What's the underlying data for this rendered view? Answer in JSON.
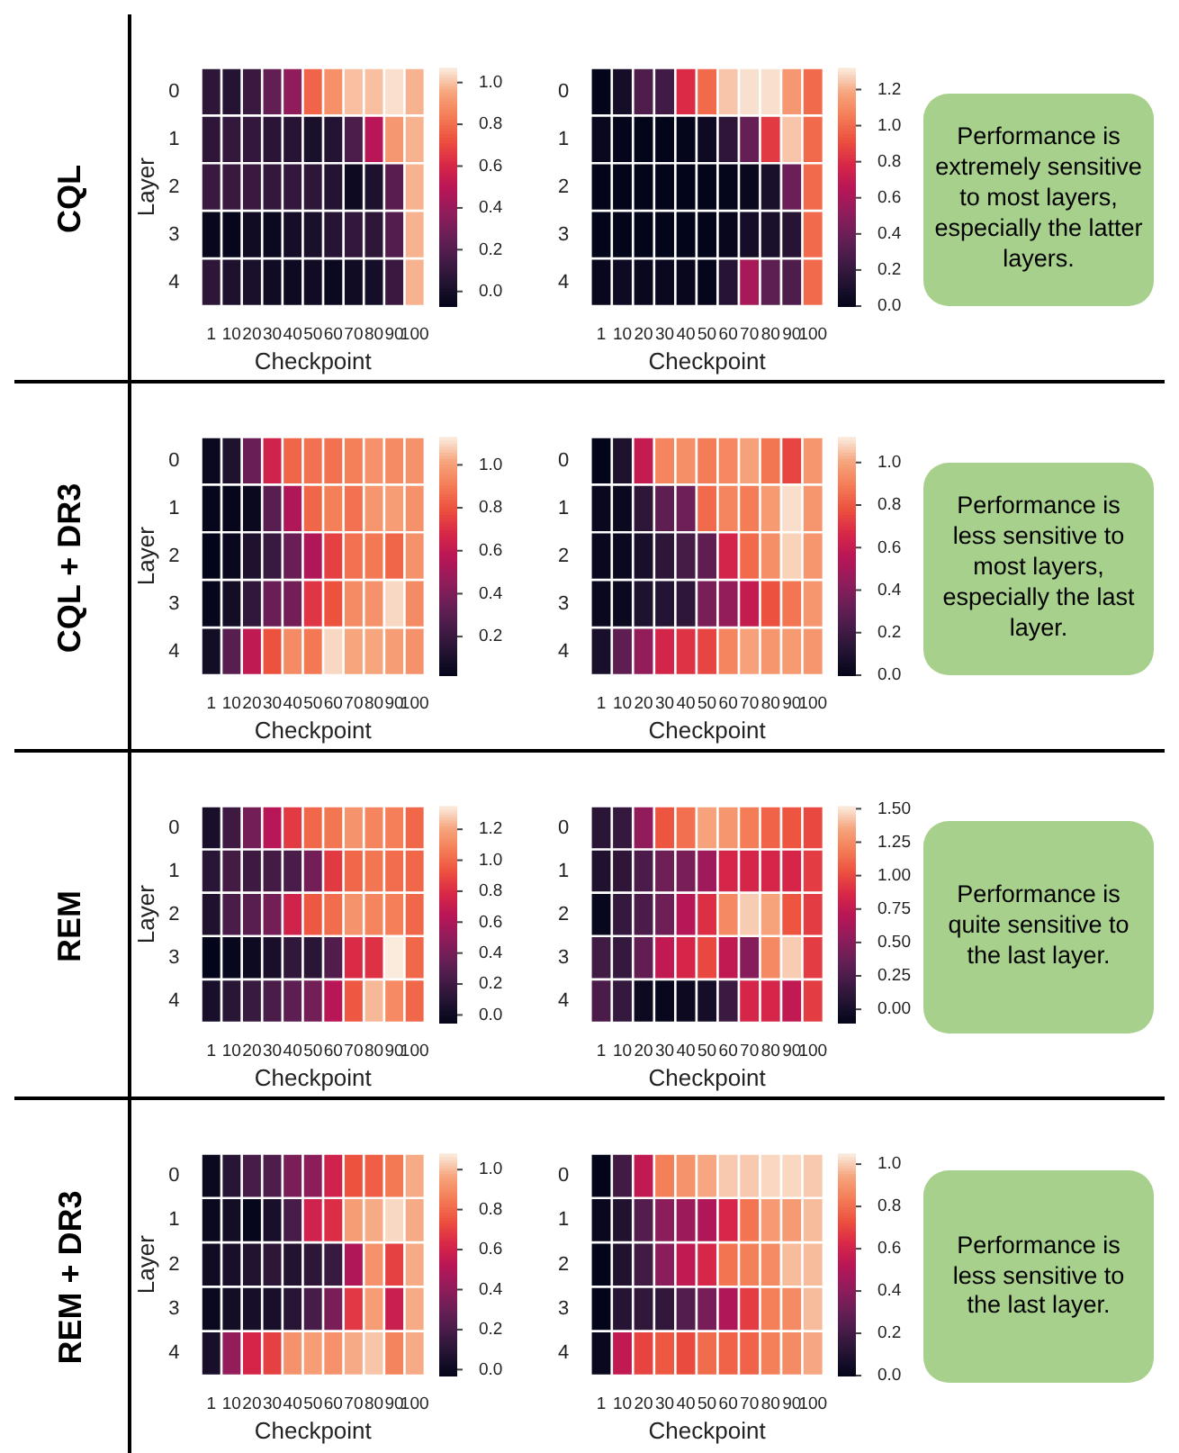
{
  "chart_data": [
    {
      "type": "heatmap",
      "xlabel": "Checkpoint",
      "ylabel": "Layer",
      "categories": [
        "1",
        "10",
        "20",
        "30",
        "40",
        "50",
        "60",
        "70",
        "80",
        "90",
        "100"
      ],
      "y_categories": [
        "0",
        "1",
        "2",
        "3",
        "4"
      ],
      "clim": [
        -0.07,
        1.07
      ],
      "cticks": [
        {
          "value": 0,
          "label": "0.0"
        },
        {
          "value": 0.2,
          "label": "0.2"
        },
        {
          "value": 0.4,
          "label": "0.4"
        },
        {
          "value": 0.6,
          "label": "0.6"
        },
        {
          "value": 0.8,
          "label": "0.8"
        },
        {
          "value": 1,
          "label": "1.0"
        }
      ],
      "cells": [
        [
          0.08,
          0.05,
          0.12,
          0.25,
          0.38,
          0.78,
          0.9,
          1.0,
          1.0,
          1.05,
          0.98
        ],
        [
          0.08,
          0.1,
          0.1,
          0.07,
          0.06,
          0.02,
          0.05,
          0.18,
          0.5,
          0.92,
          0.98
        ],
        [
          0.12,
          0.12,
          0.12,
          0.1,
          0.1,
          0.08,
          0.05,
          -0.03,
          0.03,
          0.22,
          0.98
        ],
        [
          -0.05,
          -0.06,
          -0.02,
          -0.04,
          0.0,
          0.02,
          0.06,
          0.1,
          0.08,
          0.2,
          0.98
        ],
        [
          0.08,
          0.03,
          0.02,
          -0.02,
          -0.03,
          -0.02,
          -0.04,
          -0.02,
          0.0,
          0.12,
          0.98
        ]
      ]
    },
    {
      "type": "heatmap",
      "xlabel": "Checkpoint",
      "categories": [
        "1",
        "10",
        "20",
        "30",
        "40",
        "50",
        "60",
        "70",
        "80",
        "90",
        "100"
      ],
      "y_categories": [
        "0",
        "1",
        "2",
        "3",
        "4"
      ],
      "clim": [
        0,
        1.32
      ],
      "cticks": [
        {
          "value": 0,
          "label": "0.0"
        },
        {
          "value": 0.2,
          "label": "0.2"
        },
        {
          "value": 0.4,
          "label": "0.4"
        },
        {
          "value": 0.6,
          "label": "0.6"
        },
        {
          "value": 0.8,
          "label": "0.8"
        },
        {
          "value": 1,
          "label": "1.0"
        },
        {
          "value": 1.2,
          "label": "1.2"
        }
      ],
      "cells": [
        [
          0.0,
          0.08,
          0.3,
          0.25,
          0.8,
          1.0,
          1.25,
          1.3,
          1.3,
          1.15,
          1.0
        ],
        [
          0.03,
          0.01,
          0.0,
          0.0,
          0.01,
          0.05,
          0.18,
          0.38,
          0.85,
          1.25,
          1.0
        ],
        [
          0.0,
          0.0,
          0.0,
          0.0,
          0.0,
          0.0,
          0.01,
          0.03,
          0.1,
          0.4,
          1.0
        ],
        [
          0.0,
          0.0,
          0.0,
          0.0,
          0.0,
          0.0,
          0.02,
          0.08,
          0.1,
          0.15,
          1.0
        ],
        [
          0.02,
          0.05,
          0.03,
          0.03,
          0.02,
          0.01,
          0.15,
          0.6,
          0.35,
          0.3,
          1.0
        ]
      ]
    },
    {
      "type": "other",
      "title": "CQL",
      "annotations": [
        "Performance is extremely sensitive to most layers, especially the latter layers."
      ]
    },
    {
      "type": "heatmap",
      "xlabel": "Checkpoint",
      "ylabel": "Layer",
      "categories": [
        "1",
        "10",
        "20",
        "30",
        "40",
        "50",
        "60",
        "70",
        "80",
        "90",
        "100"
      ],
      "y_categories": [
        "0",
        "1",
        "2",
        "3",
        "4"
      ],
      "clim": [
        0.02,
        1.13
      ],
      "cticks": [
        {
          "value": 0.2,
          "label": "0.2"
        },
        {
          "value": 0.4,
          "label": "0.4"
        },
        {
          "value": 0.6,
          "label": "0.6"
        },
        {
          "value": 0.8,
          "label": "0.8"
        },
        {
          "value": 1,
          "label": "1.0"
        }
      ],
      "cells": [
        [
          0.05,
          0.12,
          0.35,
          0.65,
          0.85,
          0.88,
          0.88,
          0.92,
          0.97,
          0.95,
          0.97
        ],
        [
          0.03,
          0.03,
          0.05,
          0.3,
          0.55,
          0.85,
          0.92,
          0.88,
          0.98,
          1.0,
          0.97
        ],
        [
          0.02,
          0.04,
          0.12,
          0.2,
          0.35,
          0.55,
          0.75,
          0.88,
          0.9,
          0.85,
          0.97
        ],
        [
          0.03,
          0.08,
          0.18,
          0.35,
          0.38,
          0.72,
          0.8,
          0.95,
          0.97,
          1.1,
          0.95
        ],
        [
          0.08,
          0.3,
          0.6,
          0.8,
          0.95,
          0.9,
          1.1,
          1.02,
          1.02,
          1.0,
          0.97
        ]
      ]
    },
    {
      "type": "heatmap",
      "xlabel": "Checkpoint",
      "categories": [
        "1",
        "10",
        "20",
        "30",
        "40",
        "50",
        "60",
        "70",
        "80",
        "90",
        "100"
      ],
      "y_categories": [
        "0",
        "1",
        "2",
        "3",
        "4"
      ],
      "clim": [
        0,
        1.12
      ],
      "cticks": [
        {
          "value": 0,
          "label": "0.0"
        },
        {
          "value": 0.2,
          "label": "0.2"
        },
        {
          "value": 0.4,
          "label": "0.4"
        },
        {
          "value": 0.6,
          "label": "0.6"
        },
        {
          "value": 0.8,
          "label": "0.8"
        },
        {
          "value": 1,
          "label": "1.0"
        }
      ],
      "cells": [
        [
          0.0,
          0.1,
          0.6,
          0.92,
          0.95,
          0.9,
          0.93,
          1.0,
          0.88,
          0.75,
          0.97
        ],
        [
          0.02,
          0.03,
          0.15,
          0.3,
          0.35,
          0.85,
          0.92,
          0.9,
          0.98,
          1.1,
          0.97
        ],
        [
          0.02,
          0.03,
          0.08,
          0.15,
          0.22,
          0.3,
          0.65,
          0.85,
          0.95,
          1.08,
          0.97
        ],
        [
          0.02,
          0.03,
          0.1,
          0.12,
          0.15,
          0.38,
          0.45,
          0.6,
          0.78,
          0.88,
          0.97
        ],
        [
          0.08,
          0.3,
          0.45,
          0.65,
          0.7,
          0.75,
          0.92,
          1.0,
          0.97,
          0.98,
          0.97
        ]
      ]
    },
    {
      "type": "other",
      "title": "CQL + DR3",
      "annotations": [
        "Performance is less sensitive to most layers, especially the last layer."
      ]
    },
    {
      "type": "heatmap",
      "xlabel": "Checkpoint",
      "ylabel": "Layer",
      "categories": [
        "1",
        "10",
        "20",
        "30",
        "40",
        "50",
        "60",
        "70",
        "80",
        "90",
        "100"
      ],
      "y_categories": [
        "0",
        "1",
        "2",
        "3",
        "4"
      ],
      "clim": [
        -0.05,
        1.35
      ],
      "cticks": [
        {
          "value": 0,
          "label": "0.0"
        },
        {
          "value": 0.2,
          "label": "0.2"
        },
        {
          "value": 0.4,
          "label": "0.4"
        },
        {
          "value": 0.6,
          "label": "0.6"
        },
        {
          "value": 0.8,
          "label": "0.8"
        },
        {
          "value": 1,
          "label": "1.0"
        },
        {
          "value": 1.2,
          "label": "1.2"
        }
      ],
      "cells": [
        [
          0.05,
          0.2,
          0.4,
          0.65,
          0.85,
          1.0,
          1.05,
          1.15,
          1.1,
          1.08,
          1.0
        ],
        [
          0.12,
          0.22,
          0.2,
          0.22,
          0.25,
          0.4,
          0.85,
          1.0,
          1.05,
          1.02,
          1.0
        ],
        [
          0.08,
          0.25,
          0.3,
          0.4,
          0.75,
          0.95,
          1.02,
          1.15,
          1.1,
          1.08,
          1.0
        ],
        [
          -0.05,
          -0.03,
          0.0,
          0.05,
          0.15,
          0.12,
          0.28,
          0.8,
          0.82,
          1.35,
          1.0
        ],
        [
          0.05,
          0.12,
          0.18,
          0.25,
          0.32,
          0.4,
          0.65,
          0.95,
          1.25,
          1.12,
          1.0
        ]
      ]
    },
    {
      "type": "heatmap",
      "xlabel": "Checkpoint",
      "categories": [
        "1",
        "10",
        "20",
        "30",
        "40",
        "50",
        "60",
        "70",
        "80",
        "90",
        "100"
      ],
      "y_categories": [
        "0",
        "1",
        "2",
        "3",
        "4"
      ],
      "clim": [
        -0.1,
        1.52
      ],
      "cticks": [
        {
          "value": 0,
          "label": "0.00"
        },
        {
          "value": 0.25,
          "label": "0.25"
        },
        {
          "value": 0.5,
          "label": "0.50"
        },
        {
          "value": 0.75,
          "label": "0.75"
        },
        {
          "value": 1,
          "label": "1.00"
        },
        {
          "value": 1.25,
          "label": "1.25"
        },
        {
          "value": 1.5,
          "label": "1.50"
        }
      ],
      "cells": [
        [
          0.1,
          0.15,
          0.55,
          1.05,
          1.15,
          1.35,
          1.3,
          1.2,
          1.1,
          1.05,
          1.0
        ],
        [
          0.05,
          0.12,
          0.25,
          0.4,
          0.45,
          0.6,
          0.85,
          0.85,
          0.85,
          0.85,
          0.95
        ],
        [
          -0.08,
          0.15,
          0.25,
          0.4,
          0.7,
          0.9,
          1.25,
          1.45,
          1.35,
          1.05,
          0.95
        ],
        [
          0.2,
          0.15,
          0.35,
          0.75,
          0.85,
          1.0,
          0.75,
          0.5,
          1.25,
          1.45,
          0.95
        ],
        [
          0.25,
          0.15,
          -0.05,
          -0.08,
          -0.05,
          0.0,
          0.18,
          0.85,
          0.85,
          0.75,
          0.95
        ]
      ]
    },
    {
      "type": "other",
      "title": "REM",
      "annotations": [
        "Performance is quite sensitive to the last layer."
      ]
    },
    {
      "type": "heatmap",
      "xlabel": "Checkpoint",
      "ylabel": "Layer",
      "categories": [
        "1",
        "10",
        "20",
        "30",
        "40",
        "50",
        "60",
        "70",
        "80",
        "90",
        "100"
      ],
      "y_categories": [
        "0",
        "1",
        "2",
        "3",
        "4"
      ],
      "clim": [
        -0.03,
        1.08
      ],
      "cticks": [
        {
          "value": 0,
          "label": "0.0"
        },
        {
          "value": 0.2,
          "label": "0.2"
        },
        {
          "value": 0.4,
          "label": "0.4"
        },
        {
          "value": 0.6,
          "label": "0.6"
        },
        {
          "value": 0.8,
          "label": "0.8"
        },
        {
          "value": 1,
          "label": "1.0"
        }
      ],
      "cells": [
        [
          0.0,
          0.1,
          0.2,
          0.22,
          0.35,
          0.4,
          0.6,
          0.75,
          0.78,
          0.85,
          0.98
        ],
        [
          0.0,
          0.03,
          -0.02,
          0.05,
          0.2,
          0.6,
          0.65,
          0.95,
          0.98,
          1.05,
          0.98
        ],
        [
          0.02,
          0.05,
          0.08,
          0.12,
          0.08,
          0.12,
          0.15,
          0.5,
          0.92,
          0.7,
          0.98
        ],
        [
          0.0,
          0.03,
          0.04,
          0.05,
          0.1,
          0.2,
          0.35,
          0.68,
          0.95,
          0.58,
          0.98
        ],
        [
          0.05,
          0.42,
          0.62,
          0.7,
          0.92,
          0.95,
          0.92,
          0.98,
          1.02,
          0.88,
          0.98
        ]
      ]
    },
    {
      "type": "heatmap",
      "xlabel": "Checkpoint",
      "categories": [
        "1",
        "10",
        "20",
        "30",
        "40",
        "50",
        "60",
        "70",
        "80",
        "90",
        "100"
      ],
      "y_categories": [
        "0",
        "1",
        "2",
        "3",
        "4"
      ],
      "clim": [
        0,
        1.05
      ],
      "cticks": [
        {
          "value": 0,
          "label": "0.0"
        },
        {
          "value": 0.2,
          "label": "0.2"
        },
        {
          "value": 0.4,
          "label": "0.4"
        },
        {
          "value": 0.6,
          "label": "0.6"
        },
        {
          "value": 0.8,
          "label": "0.8"
        },
        {
          "value": 1,
          "label": "1.0"
        }
      ],
      "cells": [
        [
          0.0,
          0.2,
          0.55,
          0.85,
          0.9,
          0.95,
          1.0,
          1.0,
          1.02,
          1.02,
          1.0
        ],
        [
          0.02,
          0.1,
          0.25,
          0.4,
          0.45,
          0.5,
          0.62,
          0.82,
          0.92,
          0.92,
          0.98
        ],
        [
          0.0,
          0.1,
          0.2,
          0.4,
          0.55,
          0.62,
          0.82,
          0.85,
          0.88,
          0.98,
          0.98
        ],
        [
          0.0,
          0.12,
          0.15,
          0.15,
          0.25,
          0.35,
          0.5,
          0.68,
          0.85,
          0.88,
          0.98
        ],
        [
          0.02,
          0.55,
          0.7,
          0.75,
          0.72,
          0.8,
          0.78,
          0.78,
          0.85,
          0.88,
          0.95
        ]
      ]
    },
    {
      "type": "other",
      "title": "REM + DR3",
      "annotations": [
        "Performance is less sensitive to the last layer."
      ]
    }
  ]
}
